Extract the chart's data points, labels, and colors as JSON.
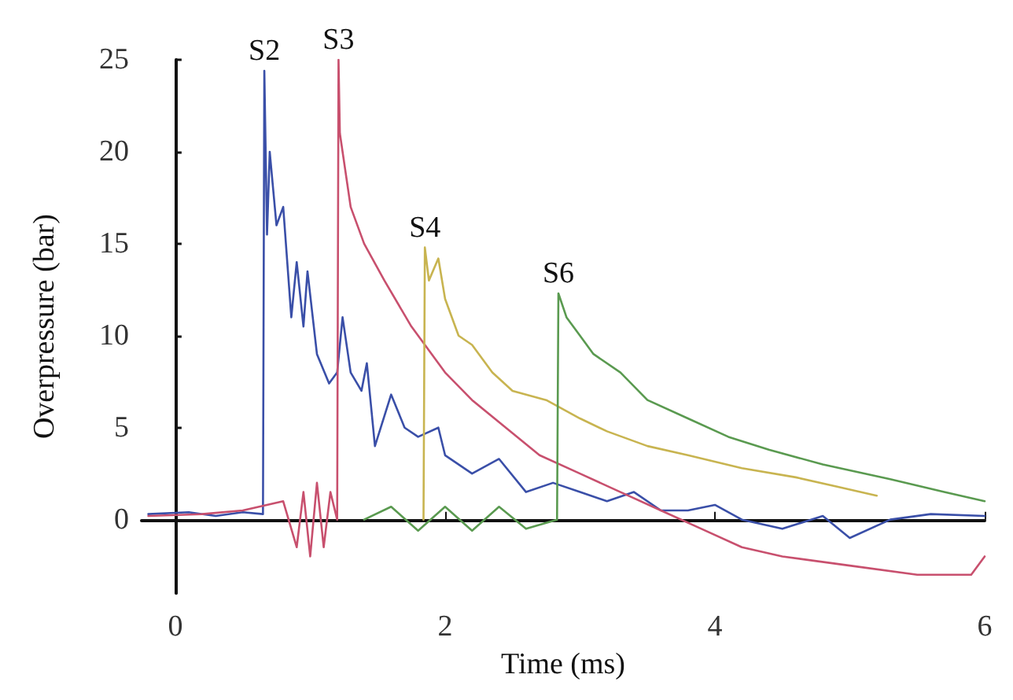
{
  "chart_data": {
    "type": "line",
    "xlabel": "Time (ms)",
    "ylabel": "Overpressure (bar)",
    "xlim": [
      -0.25,
      6
    ],
    "xticks": [
      0,
      2,
      4,
      6
    ],
    "ylim": [
      -4,
      25
    ],
    "yticks": [
      0,
      5,
      10,
      15,
      20,
      25
    ],
    "legend": false,
    "marker": "none",
    "line_style": "solid",
    "series": [
      {
        "name": "S2",
        "color": "#3a4fa8",
        "x": [
          -0.2,
          0.1,
          0.3,
          0.5,
          0.65,
          0.66,
          0.68,
          0.7,
          0.75,
          0.8,
          0.86,
          0.9,
          0.95,
          0.98,
          1.05,
          1.14,
          1.2,
          1.24,
          1.3,
          1.38,
          1.42,
          1.48,
          1.6,
          1.7,
          1.8,
          1.95,
          2.0,
          2.2,
          2.4,
          2.6,
          2.8,
          3.0,
          3.2,
          3.4,
          3.6,
          3.8,
          4.0,
          4.2,
          4.5,
          4.8,
          5.0,
          5.3,
          5.6,
          6.0
        ],
        "values": [
          0.3,
          0.4,
          0.2,
          0.4,
          0.3,
          24.4,
          15.5,
          20,
          16,
          17,
          11,
          14,
          10.5,
          13.5,
          9,
          7.4,
          8,
          11,
          8,
          7,
          8.5,
          4,
          6.8,
          5,
          4.5,
          5,
          3.5,
          2.5,
          3.3,
          1.5,
          2,
          1.5,
          1,
          1.5,
          0.5,
          0.5,
          0.8,
          0,
          -0.5,
          0.2,
          -1,
          0,
          0.3,
          0.2
        ]
      },
      {
        "name": "S3",
        "color": "#c8506e",
        "x": [
          -0.2,
          0.2,
          0.5,
          0.8,
          0.9,
          0.95,
          1.0,
          1.05,
          1.1,
          1.15,
          1.2,
          1.21,
          1.22,
          1.3,
          1.4,
          1.55,
          1.75,
          2.0,
          2.2,
          2.45,
          2.7,
          3.0,
          3.3,
          3.6,
          3.9,
          4.2,
          4.5,
          5.0,
          5.5,
          5.9,
          6.0
        ],
        "values": [
          0.2,
          0.3,
          0.5,
          1,
          -1.5,
          1.5,
          -2,
          2,
          -1.5,
          1.5,
          0,
          25,
          21,
          17,
          15,
          13,
          10.5,
          8,
          6.5,
          5,
          3.5,
          2.5,
          1.5,
          0.5,
          -0.5,
          -1.5,
          -2,
          -2.5,
          -3,
          -3,
          -2
        ]
      },
      {
        "name": "S4",
        "color": "#c8b450",
        "x": [
          1.84,
          1.85,
          1.88,
          1.95,
          2.0,
          2.1,
          2.2,
          2.35,
          2.5,
          2.75,
          3.0,
          3.2,
          3.5,
          3.8,
          4.2,
          4.6,
          4.9,
          5.2
        ],
        "values": [
          0,
          14.8,
          13,
          14.2,
          12,
          10,
          9.5,
          8,
          7,
          6.5,
          5.5,
          4.8,
          4,
          3.5,
          2.8,
          2.3,
          1.8,
          1.3
        ]
      },
      {
        "name": "S6",
        "color": "#5a9a50",
        "x": [
          1.4,
          1.6,
          1.8,
          2.0,
          2.2,
          2.4,
          2.6,
          2.83,
          2.84,
          2.9,
          3.0,
          3.1,
          3.3,
          3.5,
          3.8,
          4.1,
          4.4,
          4.8,
          5.3,
          5.7,
          6.0
        ],
        "values": [
          0,
          0.7,
          -0.6,
          0.7,
          -0.6,
          0.7,
          -0.5,
          0,
          12.3,
          11,
          10,
          9,
          8,
          6.5,
          5.5,
          4.5,
          3.8,
          3,
          2.2,
          1.5,
          1
        ]
      }
    ]
  }
}
